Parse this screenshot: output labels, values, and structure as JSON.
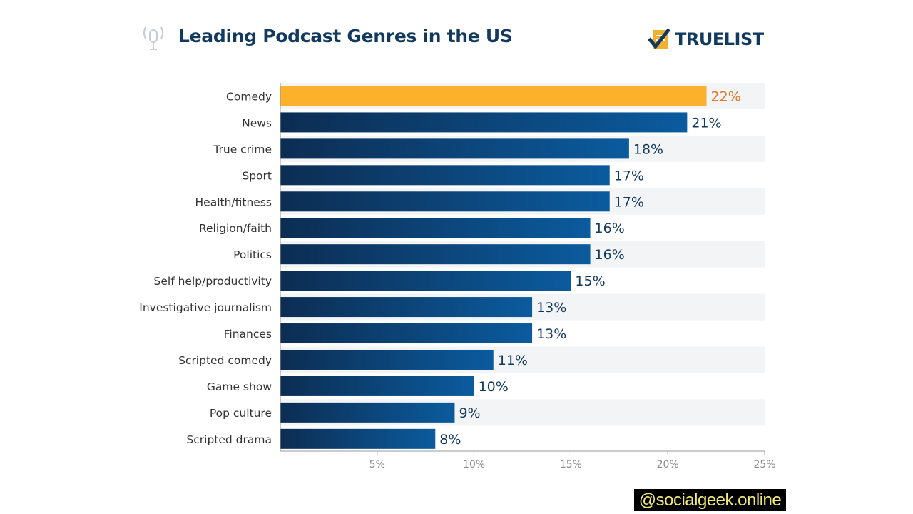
{
  "header": {
    "icon": "microphone-icon",
    "logo_icon": "checklist-icon",
    "logo_text": "TRUELIST"
  },
  "watermark": "@socialgeek.online",
  "colors": {
    "highlight": "#fbb12b",
    "highlight_label": "#e3792b",
    "bar_dark": "#0c2d52",
    "bar_light": "#0b5b9e",
    "label": "#123a5e",
    "stripe": "#f3f4f5"
  },
  "chart_data": {
    "type": "bar",
    "orientation": "horizontal",
    "title": "Leading Podcast Genres in the US",
    "categories": [
      "Comedy",
      "News",
      "True crime",
      "Sport",
      "Health/fitness",
      "Religion/faith",
      "Politics",
      "Self help/productivity",
      "Investigative journalism",
      "Finances",
      "Scripted comedy",
      "Game show",
      "Pop culture",
      "Scripted drama"
    ],
    "values": [
      22,
      21,
      18,
      17,
      17,
      16,
      16,
      15,
      13,
      13,
      11,
      10,
      9,
      8
    ],
    "data_labels": [
      "22%",
      "21%",
      "18%",
      "17%",
      "17%",
      "16%",
      "16%",
      "15%",
      "13%",
      "13%",
      "11%",
      "10%",
      "9%",
      "8%"
    ],
    "xlim": [
      0,
      25
    ],
    "x_ticks": [
      5,
      10,
      15,
      20,
      25
    ],
    "x_tick_labels": [
      "5%",
      "10%",
      "15%",
      "20%",
      "25%"
    ],
    "highlighted_category": "Comedy",
    "grid": false,
    "legend": "none"
  }
}
